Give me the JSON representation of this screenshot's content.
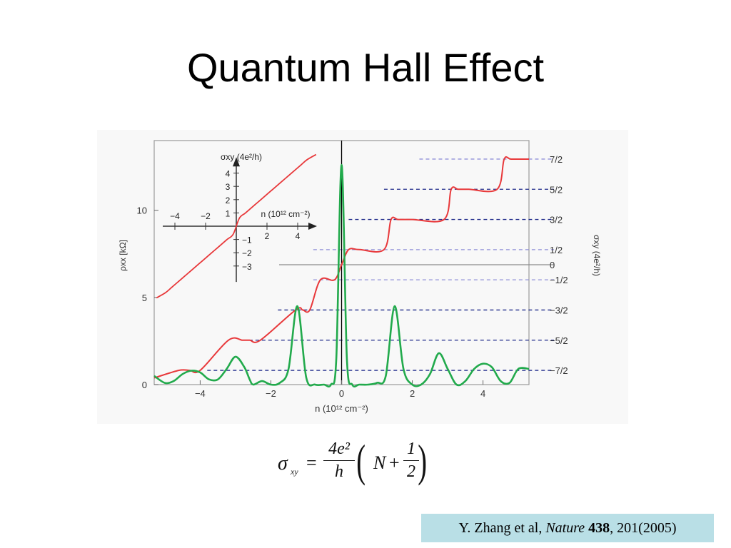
{
  "title": "Quantum Hall Effect",
  "citation": {
    "authors": "Y. Zhang et al, ",
    "journal": "Nature",
    "volume": "438",
    "pages": ", 201(2005)"
  },
  "formula": {
    "lhs": "σ",
    "lhs_sub": "xy",
    "equals": "=",
    "numerator": "4e²",
    "denominator": "h",
    "open_paren": "(",
    "N": "N",
    "plus": "+",
    "half_num": "1",
    "half_den": "2",
    "close_paren": ")"
  },
  "colors": {
    "rho_xx_trace": "#22aa4c",
    "sigma_xy_trace": "#e8383a",
    "plateau_dash": "#1f2a8a",
    "citation_bg": "#b9dfe6"
  },
  "chart_data": {
    "type": "line",
    "main": {
      "xlabel": "n (10¹² cm⁻²)",
      "ylabel_left": "ρxx [kΩ]",
      "ylabel_right": "σxy (4e²/h)",
      "xlim": [
        -5.3,
        5.3
      ],
      "ylim_left": [
        0,
        14
      ],
      "x_ticks": [
        -4,
        -2,
        0,
        2,
        4
      ],
      "x_tick_labels": [
        "−4",
        "−2",
        "0",
        "2",
        "4"
      ],
      "y_ticks_left": [
        0,
        5,
        10
      ],
      "y_tick_labels_left": [
        "0",
        "5",
        "10"
      ],
      "y_tick_labels_right": [
        "7/2",
        "5/2",
        "3/2",
        "1/2",
        "0",
        "−1/2",
        "−3/2",
        "−5/2",
        "−7/2"
      ],
      "right_axis_values": [
        3.5,
        2.5,
        1.5,
        0.5,
        0,
        -0.5,
        -1.5,
        -2.5,
        -3.5
      ],
      "series": [
        {
          "name": "ρxx",
          "x": [
            -5.3,
            -5.0,
            -4.75,
            -4.5,
            -4.25,
            -4.0,
            -3.75,
            -3.5,
            -3.25,
            -3.0,
            -2.75,
            -2.6,
            -2.5,
            -2.25,
            -2.0,
            -1.75,
            -1.5,
            -1.25,
            -1.0,
            -0.75,
            -0.5,
            -0.3,
            -0.15,
            0.0,
            0.15,
            0.3,
            0.5,
            0.75,
            1.0,
            1.25,
            1.5,
            1.75,
            2.0,
            2.25,
            2.5,
            2.75,
            3.0,
            3.25,
            3.5,
            3.75,
            4.0,
            4.25,
            4.5,
            4.75,
            5.0,
            5.3
          ],
          "y": [
            0.5,
            0.1,
            0.2,
            0.6,
            0.8,
            0.7,
            0.3,
            0.3,
            0.9,
            1.6,
            1.0,
            0.3,
            0.0,
            0.2,
            0.0,
            0.1,
            0.9,
            4.5,
            0.4,
            0.0,
            0.0,
            0.0,
            1.5,
            12.6,
            1.5,
            0.0,
            0.0,
            0.0,
            0.1,
            0.5,
            4.5,
            0.9,
            0.0,
            0.0,
            0.6,
            1.8,
            0.9,
            0.0,
            0.2,
            0.9,
            1.2,
            1.0,
            0.2,
            0.1,
            0.9,
            0.9
          ]
        },
        {
          "name": "σxy",
          "x": [
            -5.3,
            -4.6,
            -4.3,
            -4.0,
            -3.2,
            -2.8,
            -2.6,
            -2.3,
            -1.3,
            -1.1,
            -0.9,
            -0.6,
            -0.2,
            0.0,
            0.2,
            0.5,
            1.2,
            1.4,
            1.6,
            2.0,
            2.9,
            3.1,
            3.3,
            3.6,
            4.4,
            4.6,
            4.8,
            5.3
          ],
          "y": [
            -3.75,
            -3.5,
            -3.5,
            -3.5,
            -2.5,
            -2.5,
            -2.5,
            -2.5,
            -1.5,
            -1.5,
            -1.5,
            -0.5,
            -0.5,
            0.0,
            0.5,
            0.5,
            0.5,
            1.5,
            1.5,
            1.5,
            1.5,
            2.5,
            2.5,
            2.5,
            2.5,
            3.5,
            3.5,
            3.5
          ]
        }
      ]
    },
    "inset": {
      "xlabel": "n (10¹² cm⁻²)",
      "ylabel": "σxy (4e²/h)",
      "x_tick_labels": [
        "−4",
        "−2",
        "2",
        "4"
      ],
      "x_ticks": [
        -4,
        -2,
        2,
        4
      ],
      "y_tick_labels": [
        "4",
        "3",
        "2",
        "1",
        "−1",
        "−2",
        "−3"
      ],
      "y_ticks": [
        4,
        3,
        2,
        1,
        -1,
        -2,
        -3
      ],
      "series": [
        {
          "name": "σxy",
          "x": [
            -5.2,
            -4.6,
            -4.2,
            -3.6,
            -3.2,
            -2.6,
            -2.2,
            -1.6,
            -1.2,
            -0.6,
            -0.2,
            0.2,
            0.6,
            1.2,
            1.6,
            2.2,
            2.6,
            3.2,
            3.6,
            4.2,
            4.6,
            5.2
          ],
          "y": [
            -5.4,
            -5.0,
            -4.6,
            -4.0,
            -3.6,
            -3.0,
            -2.6,
            -2.0,
            -1.6,
            -1.0,
            -0.6,
            0.6,
            1.0,
            1.6,
            2.0,
            2.6,
            3.0,
            3.6,
            4.0,
            4.6,
            5.0,
            5.4
          ]
        }
      ]
    }
  }
}
